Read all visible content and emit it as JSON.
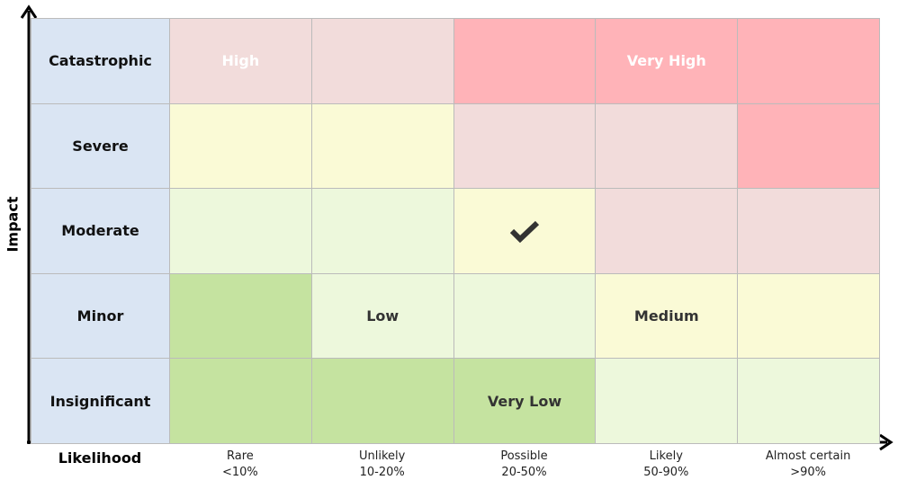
{
  "axes": {
    "y_label": "Impact",
    "x_label": "Likelihood"
  },
  "columns": [
    {
      "name": "Rare",
      "range": "<10%"
    },
    {
      "name": "Unlikely",
      "range": "10-20%"
    },
    {
      "name": "Possible",
      "range": "20-50%"
    },
    {
      "name": "Likely",
      "range": "50-90%"
    },
    {
      "name": "Almost certain",
      "range": ">90%"
    }
  ],
  "rows": [
    {
      "label": "Catastrophic",
      "cells": [
        {
          "color": "#f2dcdb",
          "label": "High",
          "text_color": "#ffffff"
        },
        {
          "color": "#f2dcdb"
        },
        {
          "color": "#ffb3b8"
        },
        {
          "color": "#ffb3b8",
          "label": "Very High",
          "text_color": "#ffffff"
        },
        {
          "color": "#ffb3b8"
        }
      ]
    },
    {
      "label": "Severe",
      "cells": [
        {
          "color": "#fafad6"
        },
        {
          "color": "#fafad6"
        },
        {
          "color": "#f2dcdb"
        },
        {
          "color": "#f2dcdb"
        },
        {
          "color": "#ffb3b8"
        }
      ]
    },
    {
      "label": "Moderate",
      "cells": [
        {
          "color": "#edf8dc"
        },
        {
          "color": "#edf8dc"
        },
        {
          "color": "#fafad6",
          "checked": true
        },
        {
          "color": "#f2dcdb"
        },
        {
          "color": "#f2dcdb"
        }
      ]
    },
    {
      "label": "Minor",
      "cells": [
        {
          "color": "#c5e3a0"
        },
        {
          "color": "#edf8dc",
          "label": "Low",
          "text_color": "#333333"
        },
        {
          "color": "#edf8dc"
        },
        {
          "color": "#fafad6",
          "label": "Medium",
          "text_color": "#333333"
        },
        {
          "color": "#fafad6"
        }
      ]
    },
    {
      "label": "Insignificant",
      "cells": [
        {
          "color": "#c5e3a0"
        },
        {
          "color": "#c5e3a0"
        },
        {
          "color": "#c5e3a0",
          "label": "Very Low",
          "text_color": "#333333"
        },
        {
          "color": "#edf8dc"
        },
        {
          "color": "#edf8dc"
        }
      ]
    }
  ]
}
